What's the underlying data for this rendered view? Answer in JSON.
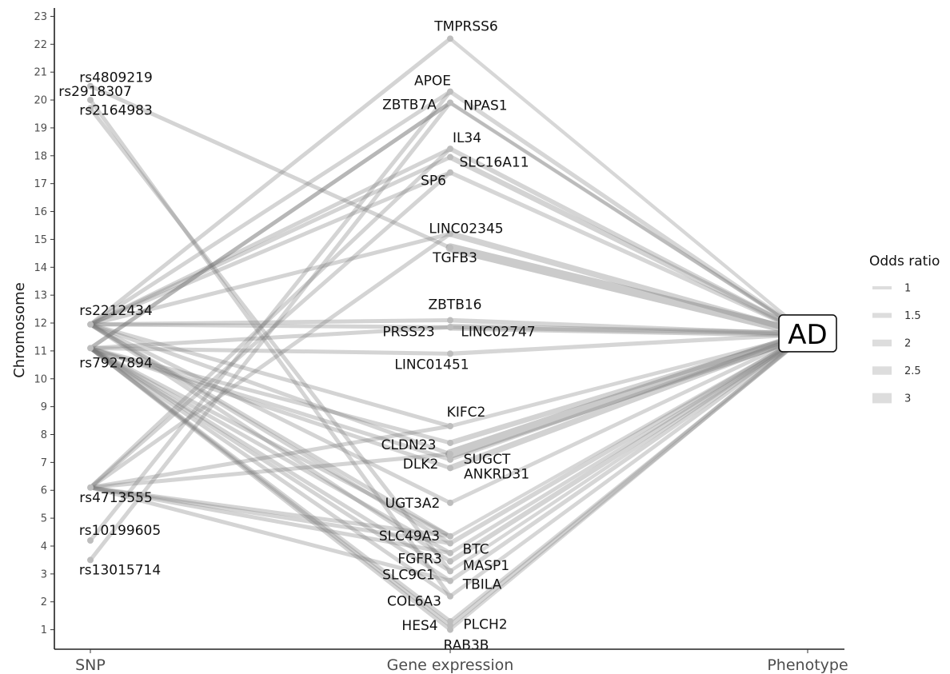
{
  "chart_data": {
    "type": "network",
    "ylabel": "Chromosome",
    "xlabel": "",
    "y_ticks": [
      "1",
      "2",
      "3",
      "4",
      "5",
      "6",
      "7",
      "8",
      "9",
      "10",
      "11",
      "12",
      "13",
      "14",
      "15",
      "16",
      "17",
      "18",
      "19",
      "20",
      "21",
      "22",
      "23"
    ],
    "ylim": [
      0.3,
      23.3
    ],
    "x_categories": [
      "SNP",
      "Gene expression",
      "Phenotype"
    ],
    "grid": false,
    "legend": {
      "title": "Odds ratio",
      "position": "right",
      "items": [
        "1",
        "1.5",
        "2",
        "2.5",
        "3"
      ]
    },
    "snps": [
      {
        "id": "rs4809219",
        "chr": 20.5
      },
      {
        "id": "rs2918307",
        "chr": 20.0
      },
      {
        "id": "rs2164983",
        "chr": 19.7
      },
      {
        "id": "rs2212434",
        "chr": 11.95
      },
      {
        "id": "rs7927894",
        "chr": 11.1
      },
      {
        "id": "rs4713555",
        "chr": 6.1
      },
      {
        "id": "rs10199605",
        "chr": 4.2
      },
      {
        "id": "rs13015714",
        "chr": 3.5
      }
    ],
    "genes": [
      {
        "id": "TMPRSS6",
        "chr": 22.2
      },
      {
        "id": "APOE",
        "chr": 20.3
      },
      {
        "id": "ZBTB7A",
        "chr": 19.9
      },
      {
        "id": "NPAS1",
        "chr": 19.9
      },
      {
        "id": "IL34",
        "chr": 18.25
      },
      {
        "id": "SLC16A11",
        "chr": 17.95
      },
      {
        "id": "SP6",
        "chr": 17.4
      },
      {
        "id": "LINC02345",
        "chr": 15.2
      },
      {
        "id": "TGFB3",
        "chr": 14.7
      },
      {
        "id": "ZBTB16",
        "chr": 12.1
      },
      {
        "id": "PRSS23",
        "chr": 11.85
      },
      {
        "id": "LINC02747",
        "chr": 11.85
      },
      {
        "id": "LINC01451",
        "chr": 10.9
      },
      {
        "id": "KIFC2",
        "chr": 8.3
      },
      {
        "id": "CLDN23",
        "chr": 7.7
      },
      {
        "id": "SUGCT",
        "chr": 7.3
      },
      {
        "id": "DLK2",
        "chr": 7.1
      },
      {
        "id": "ANKRD31",
        "chr": 6.8
      },
      {
        "id": "UGT3A2",
        "chr": 5.55
      },
      {
        "id": "SLC49A3",
        "chr": 4.35
      },
      {
        "id": "BTC",
        "chr": 4.1
      },
      {
        "id": "FGFR3",
        "chr": 3.75
      },
      {
        "id": "MASP1",
        "chr": 3.45
      },
      {
        "id": "SLC9C1",
        "chr": 3.1
      },
      {
        "id": "TBILA",
        "chr": 2.75
      },
      {
        "id": "COL6A3",
        "chr": 2.2
      },
      {
        "id": "HES4",
        "chr": 1.3
      },
      {
        "id": "PLCH2",
        "chr": 1.15
      },
      {
        "id": "RAB3B",
        "chr": 1.0
      }
    ],
    "phenotype": {
      "id": "AD",
      "chr": 11.6
    },
    "snp_gene_edges": [
      [
        "rs4809219",
        "TGFB3"
      ],
      [
        "rs2918307",
        "COL6A3"
      ],
      [
        "rs2164983",
        "SLC9C1"
      ],
      [
        "rs2212434",
        "TMPRSS6"
      ],
      [
        "rs2212434",
        "APOE"
      ],
      [
        "rs2212434",
        "IL34"
      ],
      [
        "rs2212434",
        "SP6"
      ],
      [
        "rs2212434",
        "SLC16A11"
      ],
      [
        "rs2212434",
        "LINC02345"
      ],
      [
        "rs2212434",
        "ZBTB16"
      ],
      [
        "rs2212434",
        "LINC02747"
      ],
      [
        "rs2212434",
        "KIFC2"
      ],
      [
        "rs2212434",
        "SUGCT"
      ],
      [
        "rs2212434",
        "UGT3A2"
      ],
      [
        "rs2212434",
        "BTC"
      ],
      [
        "rs2212434",
        "MASP1"
      ],
      [
        "rs2212434",
        "SLC49A3"
      ],
      [
        "rs7927894",
        "ZBTB7A"
      ],
      [
        "rs7927894",
        "NPAS1"
      ],
      [
        "rs7927894",
        "PRSS23"
      ],
      [
        "rs7927894",
        "LINC01451"
      ],
      [
        "rs7927894",
        "CLDN23"
      ],
      [
        "rs7927894",
        "DLK2"
      ],
      [
        "rs7927894",
        "ANKRD31"
      ],
      [
        "rs7927894",
        "FGFR3"
      ],
      [
        "rs7927894",
        "SLC9C1"
      ],
      [
        "rs7927894",
        "COL6A3"
      ],
      [
        "rs7927894",
        "HES4"
      ],
      [
        "rs7927894",
        "RAB3B"
      ],
      [
        "rs7927894",
        "TBILA"
      ],
      [
        "rs7927894",
        "PLCH2"
      ],
      [
        "rs7927894",
        "SLC49A3"
      ],
      [
        "rs4713555",
        "IL34"
      ],
      [
        "rs4713555",
        "SP6"
      ],
      [
        "rs4713555",
        "LINC02345"
      ],
      [
        "rs4713555",
        "KIFC2"
      ],
      [
        "rs4713555",
        "SUGCT"
      ],
      [
        "rs4713555",
        "SLC49A3"
      ],
      [
        "rs4713555",
        "BTC"
      ],
      [
        "rs4713555",
        "FGFR3"
      ],
      [
        "rs4713555",
        "TBILA"
      ],
      [
        "rs10199605",
        "APOE"
      ],
      [
        "rs13015714",
        "NPAS1"
      ]
    ],
    "gene_edges": [
      {
        "gene": "TMPRSS6",
        "or": 1.3
      },
      {
        "gene": "APOE",
        "or": 1.5
      },
      {
        "gene": "ZBTB7A",
        "or": 1.2
      },
      {
        "gene": "NPAS1",
        "or": 1.4
      },
      {
        "gene": "IL34",
        "or": 1.6
      },
      {
        "gene": "SLC16A11",
        "or": 1.8
      },
      {
        "gene": "SP6",
        "or": 1.5
      },
      {
        "gene": "LINC02345",
        "or": 2.0
      },
      {
        "gene": "TGFB3",
        "or": 2.8
      },
      {
        "gene": "ZBTB16",
        "or": 1.6
      },
      {
        "gene": "PRSS23",
        "or": 1.4
      },
      {
        "gene": "LINC02747",
        "or": 2.2
      },
      {
        "gene": "LINC01451",
        "or": 1.5
      },
      {
        "gene": "KIFC2",
        "or": 1.4
      },
      {
        "gene": "CLDN23",
        "or": 1.8
      },
      {
        "gene": "SUGCT",
        "or": 3.0
      },
      {
        "gene": "DLK2",
        "or": 1.3
      },
      {
        "gene": "ANKRD31",
        "or": 2.0
      },
      {
        "gene": "UGT3A2",
        "or": 1.4
      },
      {
        "gene": "SLC49A3",
        "or": 1.3
      },
      {
        "gene": "BTC",
        "or": 1.6
      },
      {
        "gene": "FGFR3",
        "or": 1.4
      },
      {
        "gene": "MASP1",
        "or": 1.7
      },
      {
        "gene": "SLC9C1",
        "or": 1.3
      },
      {
        "gene": "TBILA",
        "or": 1.5
      },
      {
        "gene": "COL6A3",
        "or": 1.4
      },
      {
        "gene": "HES4",
        "or": 1.3
      },
      {
        "gene": "PLCH2",
        "or": 1.6
      },
      {
        "gene": "RAB3B",
        "or": 1.2
      }
    ]
  }
}
